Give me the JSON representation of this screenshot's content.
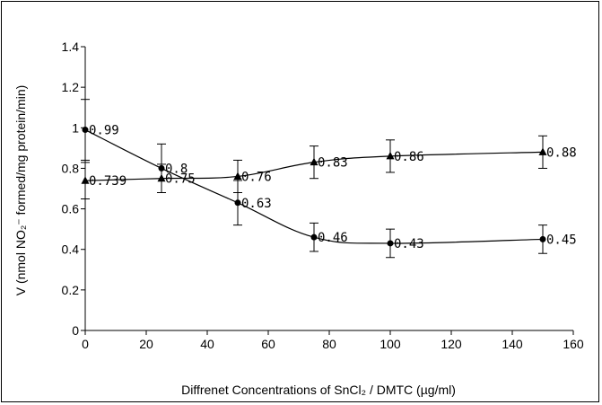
{
  "chart_data": {
    "type": "line",
    "title": "",
    "xlabel": "Diffrenet Concentrations of SnCl₂ / DMTC (µg/ml)",
    "ylabel": "V (nmol NO₂⁻ formed/mg protein/min)",
    "xlim": [
      0,
      160
    ],
    "ylim": [
      0,
      1.4
    ],
    "xticks": [
      "0",
      "20",
      "40",
      "60",
      "80",
      "100",
      "120",
      "140",
      "160"
    ],
    "yticks": [
      "0",
      "0.2",
      "0.4",
      "0.6",
      "0.8",
      "1",
      "1.2",
      "1.4"
    ],
    "grid": false,
    "legend": "none",
    "series": [
      {
        "marker": "circle",
        "color": "#000000",
        "x": [
          0,
          25,
          50,
          75,
          100,
          150
        ],
        "y": [
          0.99,
          0.8,
          0.63,
          0.46,
          0.43,
          0.45
        ],
        "error": [
          0.15,
          0.12,
          0.11,
          0.07,
          0.07,
          0.07
        ],
        "labels": [
          "0.99",
          "0.8",
          "0.63",
          "0.46",
          "0.43",
          "0.45"
        ]
      },
      {
        "marker": "triangle",
        "color": "#000000",
        "x": [
          0,
          25,
          50,
          75,
          100,
          150
        ],
        "y": [
          0.739,
          0.75,
          0.76,
          0.83,
          0.86,
          0.88
        ],
        "error": [
          0.09,
          0.07,
          0.08,
          0.08,
          0.08,
          0.08
        ],
        "labels": [
          "0.739",
          "0.75",
          "0.76",
          "0.83",
          "0.86",
          "0.88"
        ]
      }
    ]
  }
}
